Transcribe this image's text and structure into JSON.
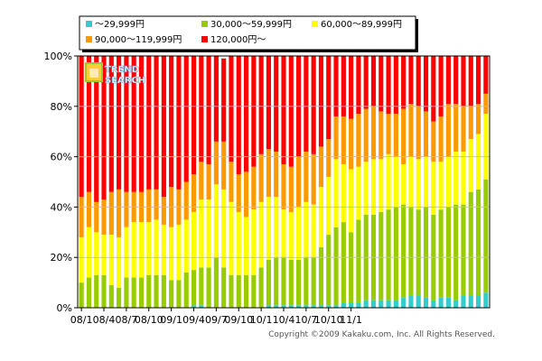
{
  "copyright": "Copyright ©2009 Kakaku.com, Inc. All Rights Reserved.",
  "logo": {
    "line1": "TREND",
    "line2": "SEARCH"
  },
  "chart_data": {
    "type": "bar",
    "stacked": true,
    "normalized": true,
    "ylim": [
      0,
      100
    ],
    "yticks": [
      "0%",
      "20%",
      "40%",
      "60%",
      "80%",
      "100%"
    ],
    "xticks": [
      "08/1",
      "08/4",
      "08/7",
      "08/10",
      "09/1",
      "09/4",
      "09/7",
      "09/10",
      "10/1",
      "10/4",
      "10/7",
      "10/10",
      "11/1"
    ],
    "legend_position": "top",
    "series": [
      {
        "name": "～29,999円",
        "color": "#33cccc",
        "values": [
          0,
          0,
          0,
          0,
          0,
          0,
          0,
          0,
          0,
          0,
          0,
          0,
          0,
          0,
          0,
          1,
          1,
          0,
          0,
          0,
          0,
          0,
          0,
          0,
          0,
          1,
          1,
          1,
          1,
          1,
          1,
          1,
          1,
          1,
          1,
          2,
          2,
          2,
          3,
          3,
          3,
          3,
          3,
          4,
          5,
          5,
          4,
          3,
          4,
          4,
          3,
          5,
          5,
          5,
          6
        ]
      },
      {
        "name": "30,000～59,999円",
        "color": "#99cc00",
        "values": [
          10,
          12,
          13,
          13,
          9,
          8,
          12,
          12,
          12,
          13,
          13,
          13,
          11,
          11,
          14,
          14,
          15,
          16,
          20,
          16,
          13,
          13,
          13,
          13,
          16,
          18,
          19,
          19,
          18,
          18,
          19,
          19,
          23,
          28,
          31,
          32,
          28,
          33,
          34,
          34,
          35,
          36,
          37,
          37,
          35,
          34,
          36,
          34,
          35,
          36,
          38,
          36,
          41,
          42,
          45
        ]
      },
      {
        "name": "60,000～89,999円",
        "color": "#ffff00",
        "values": [
          18,
          20,
          17,
          16,
          20,
          20,
          20,
          22,
          22,
          21,
          22,
          20,
          21,
          22,
          21,
          23,
          27,
          27,
          29,
          31,
          29,
          25,
          23,
          26,
          26,
          25,
          24,
          19,
          19,
          21,
          22,
          21,
          24,
          23,
          27,
          23,
          25,
          21,
          21,
          22,
          21,
          22,
          20,
          16,
          20,
          20,
          20,
          21,
          19,
          20,
          21,
          21,
          21,
          22,
          26
        ]
      },
      {
        "name": "90,000～119,999円",
        "color": "#ff9900",
        "values": [
          16,
          14,
          12,
          14,
          17,
          19,
          14,
          12,
          12,
          13,
          12,
          11,
          16,
          14,
          15,
          15,
          15,
          14,
          17,
          19,
          16,
          15,
          18,
          17,
          19,
          19,
          18,
          18,
          18,
          20,
          20,
          20,
          16,
          15,
          17,
          19,
          20,
          21,
          21,
          21,
          19,
          16,
          17,
          22,
          21,
          21,
          18,
          16,
          18,
          21,
          19,
          18,
          13,
          12,
          8
        ]
      },
      {
        "name": "120,000円～",
        "color": "#ff0000",
        "values": [
          56,
          54,
          58,
          57,
          54,
          53,
          54,
          54,
          54,
          53,
          53,
          56,
          52,
          53,
          50,
          47,
          42,
          43,
          34,
          33,
          42,
          47,
          46,
          44,
          39,
          37,
          38,
          43,
          44,
          40,
          38,
          39,
          36,
          33,
          24,
          24,
          25,
          23,
          21,
          20,
          22,
          23,
          23,
          21,
          19,
          20,
          22,
          26,
          24,
          19,
          19,
          20,
          20,
          19,
          15
        ]
      }
    ]
  }
}
